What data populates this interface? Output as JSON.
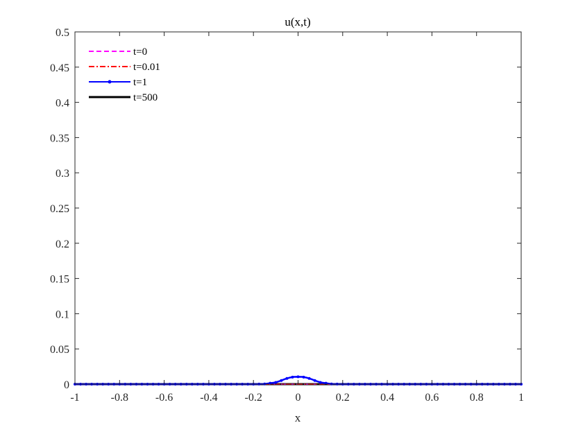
{
  "chart_data": {
    "type": "line",
    "title": "u(x,t)",
    "xlabel": "x",
    "ylabel": "",
    "xlim": [
      -1,
      1
    ],
    "ylim": [
      0,
      0.5
    ],
    "xticks": [
      -1,
      -0.8,
      -0.6,
      -0.4,
      -0.2,
      0,
      0.2,
      0.4,
      0.6,
      0.8,
      1
    ],
    "xtick_labels": [
      "-1",
      "-0.8",
      "-0.6",
      "-0.4",
      "-0.2",
      "0",
      "0.2",
      "0.4",
      "0.6",
      "0.8",
      "1"
    ],
    "yticks": [
      0,
      0.05,
      0.1,
      0.15,
      0.2,
      0.25,
      0.3,
      0.35,
      0.4,
      0.45,
      0.5
    ],
    "ytick_labels": [
      "0",
      "0.05",
      "0.1",
      "0.15",
      "0.2",
      "0.25",
      "0.3",
      "0.35",
      "0.4",
      "0.45",
      "0.5"
    ],
    "grid": false,
    "legend_position": "top-left",
    "series": [
      {
        "name": "t=0",
        "color": "#ff00ff",
        "style": "dashed",
        "x": [
          -1,
          1
        ],
        "y": [
          0,
          0
        ]
      },
      {
        "name": "t=0.01",
        "color": "#ff0000",
        "style": "dashdot",
        "x": [
          -1,
          1
        ],
        "y": [
          0,
          0
        ]
      },
      {
        "name": "t=1",
        "color": "#0000ff",
        "style": "solid-dots",
        "x": [
          -1,
          -0.8,
          -0.6,
          -0.4,
          -0.2,
          -0.15,
          -0.1,
          -0.08,
          -0.06,
          -0.04,
          -0.02,
          0,
          0.02,
          0.04,
          0.06,
          0.08,
          0.1,
          0.15,
          0.2,
          0.4,
          0.6,
          0.8,
          1
        ],
        "y": [
          0,
          0,
          0,
          0,
          0,
          0.0003,
          0.0025,
          0.0046,
          0.0071,
          0.0091,
          0.0103,
          0.0105,
          0.0103,
          0.0091,
          0.0071,
          0.0046,
          0.0025,
          0.0003,
          0,
          0,
          0,
          0,
          0
        ]
      },
      {
        "name": "t=500",
        "color": "#000000",
        "style": "solid-thick",
        "x": [
          -1,
          1
        ],
        "y": [
          0,
          0
        ]
      }
    ]
  }
}
